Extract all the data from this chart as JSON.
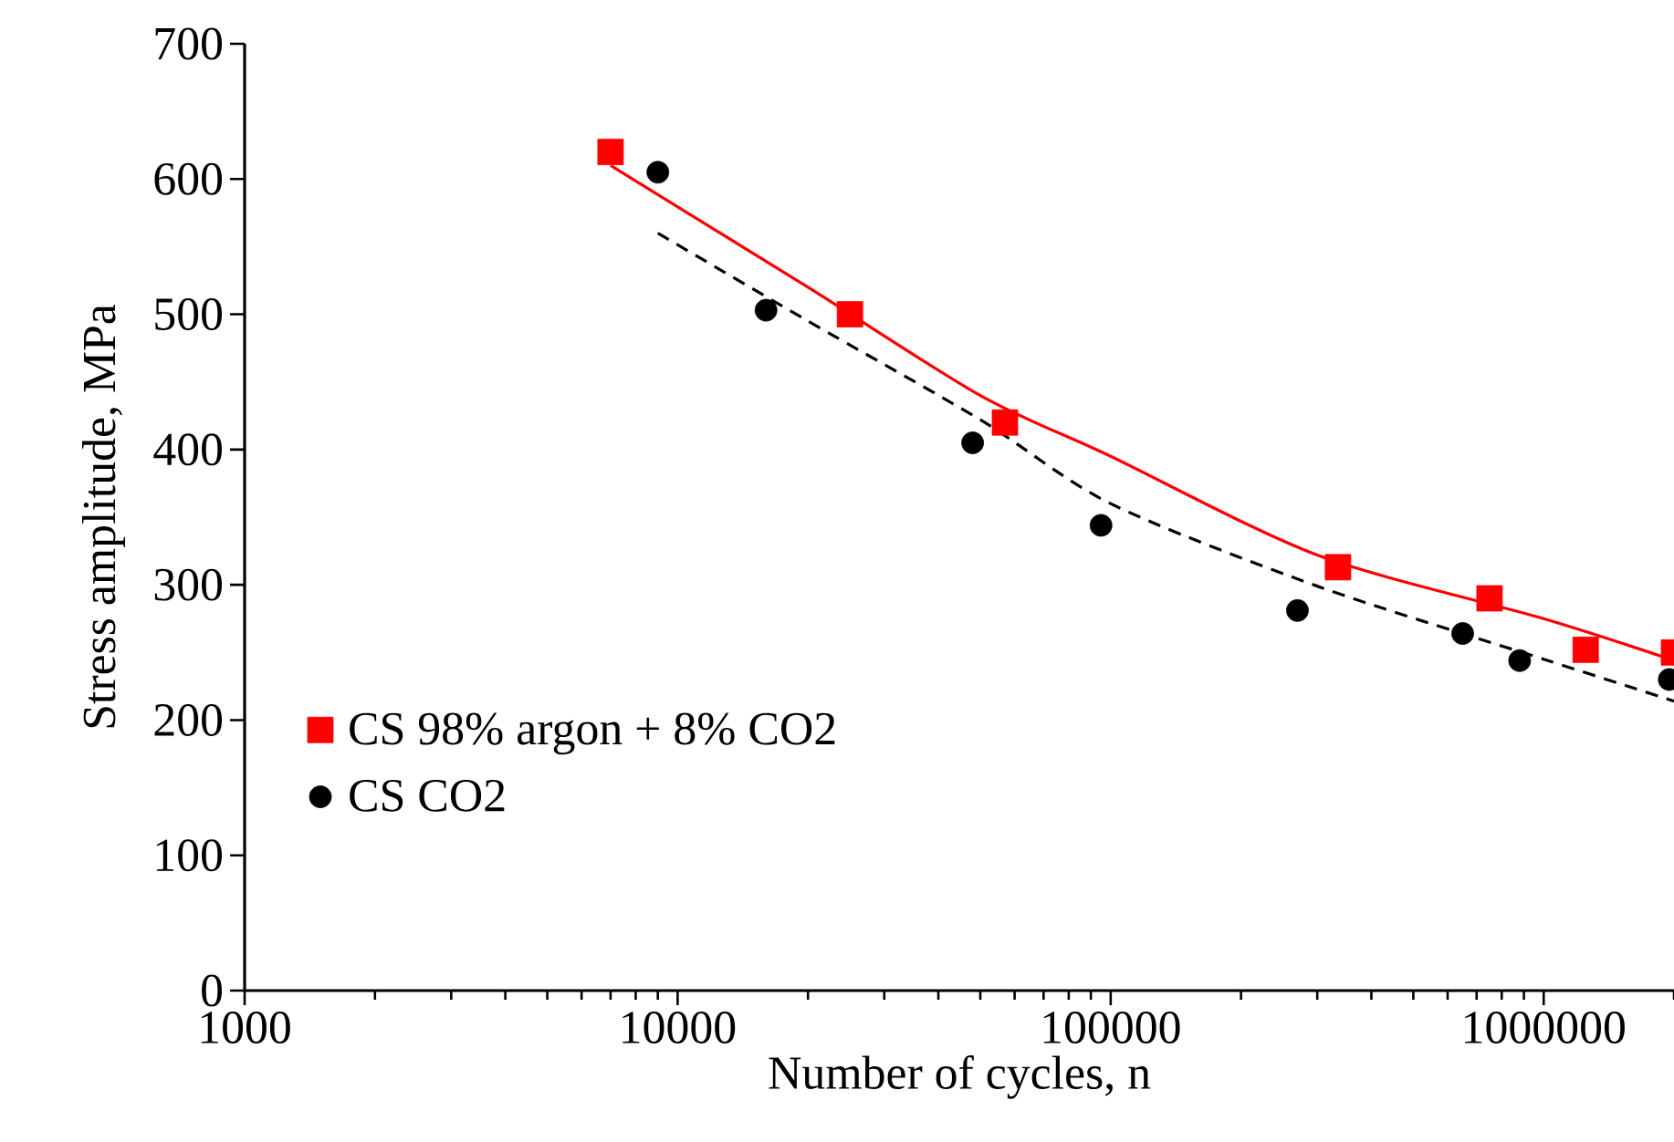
{
  "chart_data": {
    "type": "scatter",
    "xlabel": "Number of cycles, n",
    "ylabel": "Stress amplitude, MPa",
    "log": "x",
    "xlim": [
      1000,
      2000000
    ],
    "ylim": [
      0,
      700
    ],
    "xticks": [
      1000,
      10000,
      100000,
      1000000
    ],
    "yticks": [
      0,
      100,
      200,
      300,
      400,
      500,
      600,
      700
    ],
    "grid": false,
    "legend": "left",
    "series": [
      {
        "name": "CS 98% argon + 8% CO2",
        "marker": "square",
        "color": "#ff0000",
        "x": [
          7000,
          25000,
          57000,
          335000,
          750000,
          1250000,
          2000000
        ],
        "values": [
          620,
          500,
          420,
          313,
          290,
          252,
          250
        ]
      },
      {
        "name": "CS CO2",
        "marker": "circle",
        "color": "#000000",
        "x": [
          9000,
          16000,
          48000,
          95000,
          270000,
          650000,
          880000,
          1950000
        ],
        "values": [
          605,
          503,
          405,
          344,
          281,
          264,
          244,
          230
        ]
      },
      {
        "type": "line",
        "marker": "none",
        "line_style": "solid",
        "color": "#ff0000",
        "x": [
          7000,
          20000,
          50000,
          100000,
          300000,
          1000000,
          2000000
        ],
        "values": [
          610,
          520,
          440,
          395,
          322,
          275,
          244
        ]
      },
      {
        "type": "line",
        "marker": "none",
        "line_style": "dashed",
        "color": "#000000",
        "x": [
          9000,
          20000,
          50000,
          100000,
          300000,
          1000000,
          2000000
        ],
        "values": [
          560,
          495,
          422,
          360,
          299,
          245,
          214
        ]
      }
    ]
  }
}
